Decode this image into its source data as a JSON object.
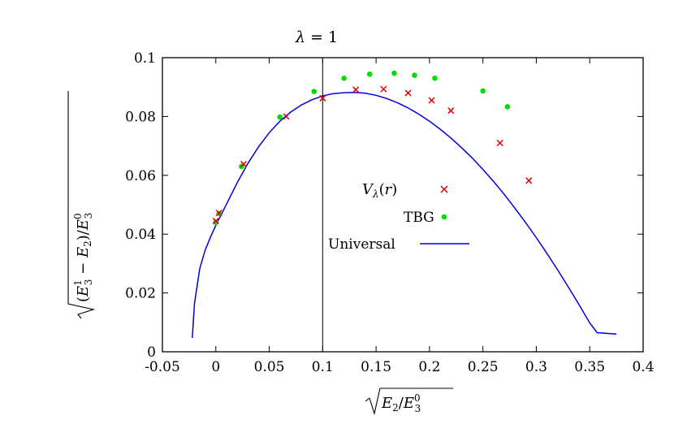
{
  "chart_data": {
    "type": "scatter",
    "title": "",
    "xlim": [
      -0.05,
      0.4
    ],
    "ylim": [
      0,
      0.1
    ],
    "x_ticks": [
      "-0.05",
      "0",
      "0.05",
      "0.1",
      "0.15",
      "0.2",
      "0.25",
      "0.3",
      "0.35",
      "0.4"
    ],
    "x_tick_values": [
      -0.05,
      0,
      0.05,
      0.1,
      0.15,
      0.2,
      0.25,
      0.3,
      0.35,
      0.4
    ],
    "y_ticks": [
      "0",
      "0.02",
      "0.04",
      "0.06",
      "0.08",
      "0.1"
    ],
    "y_tick_values": [
      0,
      0.02,
      0.04,
      0.06,
      0.08,
      0.1
    ],
    "xlabel_parts": [
      "E",
      "2",
      "/",
      "E",
      "0",
      "3"
    ],
    "ylabel_parts": [
      "(",
      "E",
      "1",
      "3",
      " − ",
      "E",
      "2",
      ")/",
      "E",
      "0",
      "3"
    ],
    "annotation": {
      "text_parts": [
        "λ",
        " = ",
        "1"
      ],
      "x": 0.1
    },
    "legend_position": "center-right",
    "legend": {
      "v_lambda_parts": [
        "V",
        "λ",
        "(",
        "r",
        ")"
      ],
      "tbg": "TBG",
      "universal": "Universal"
    },
    "series": [
      {
        "name": "Vλ(r)",
        "marker": "cross",
        "color": "#e00000",
        "points": [
          [
            0.0,
            0.0445
          ],
          [
            0.003,
            0.0472
          ],
          [
            0.026,
            0.0638
          ],
          [
            0.066,
            0.08
          ],
          [
            0.1,
            0.0862
          ],
          [
            0.131,
            0.0891
          ],
          [
            0.157,
            0.0893
          ],
          [
            0.18,
            0.088
          ],
          [
            0.202,
            0.0855
          ],
          [
            0.22,
            0.082
          ],
          [
            0.266,
            0.071
          ],
          [
            0.293,
            0.0582
          ]
        ]
      },
      {
        "name": "TBG",
        "marker": "dot",
        "color": "#00dd00",
        "points": [
          [
            0.0,
            0.044
          ],
          [
            0.003,
            0.047
          ],
          [
            0.024,
            0.063
          ],
          [
            0.06,
            0.0798
          ],
          [
            0.092,
            0.0885
          ],
          [
            0.12,
            0.093
          ],
          [
            0.144,
            0.0944
          ],
          [
            0.167,
            0.0947
          ],
          [
            0.186,
            0.094
          ],
          [
            0.205,
            0.093
          ],
          [
            0.25,
            0.0887
          ],
          [
            0.273,
            0.0833
          ]
        ]
      },
      {
        "name": "Universal",
        "type": "line",
        "color": "#0000dd",
        "points": [
          [
            -0.022,
            0.0047
          ],
          [
            -0.02,
            0.0164
          ],
          [
            -0.015,
            0.0283
          ],
          [
            -0.01,
            0.0345
          ],
          [
            -0.005,
            0.039
          ],
          [
            0.0,
            0.043
          ],
          [
            0.01,
            0.0502
          ],
          [
            0.02,
            0.0575
          ],
          [
            0.03,
            0.064
          ],
          [
            0.04,
            0.0697
          ],
          [
            0.05,
            0.0745
          ],
          [
            0.06,
            0.0784
          ],
          [
            0.07,
            0.0815
          ],
          [
            0.08,
            0.0839
          ],
          [
            0.09,
            0.0857
          ],
          [
            0.1,
            0.087
          ],
          [
            0.11,
            0.0878
          ],
          [
            0.12,
            0.0881
          ],
          [
            0.13,
            0.0882
          ],
          [
            0.14,
            0.0879
          ],
          [
            0.15,
            0.0872
          ],
          [
            0.16,
            0.0861
          ],
          [
            0.17,
            0.0847
          ],
          [
            0.18,
            0.0829
          ],
          [
            0.19,
            0.0808
          ],
          [
            0.2,
            0.0784
          ],
          [
            0.21,
            0.0757
          ],
          [
            0.22,
            0.0727
          ],
          [
            0.23,
            0.0694
          ],
          [
            0.24,
            0.0659
          ],
          [
            0.25,
            0.062
          ],
          [
            0.26,
            0.0579
          ],
          [
            0.27,
            0.0535
          ],
          [
            0.28,
            0.0488
          ],
          [
            0.29,
            0.0439
          ],
          [
            0.3,
            0.0388
          ],
          [
            0.31,
            0.0334
          ],
          [
            0.32,
            0.0278
          ],
          [
            0.33,
            0.022
          ],
          [
            0.34,
            0.016
          ],
          [
            0.35,
            0.0098
          ],
          [
            0.357,
            0.0065
          ],
          [
            0.375,
            0.006
          ]
        ]
      }
    ]
  }
}
